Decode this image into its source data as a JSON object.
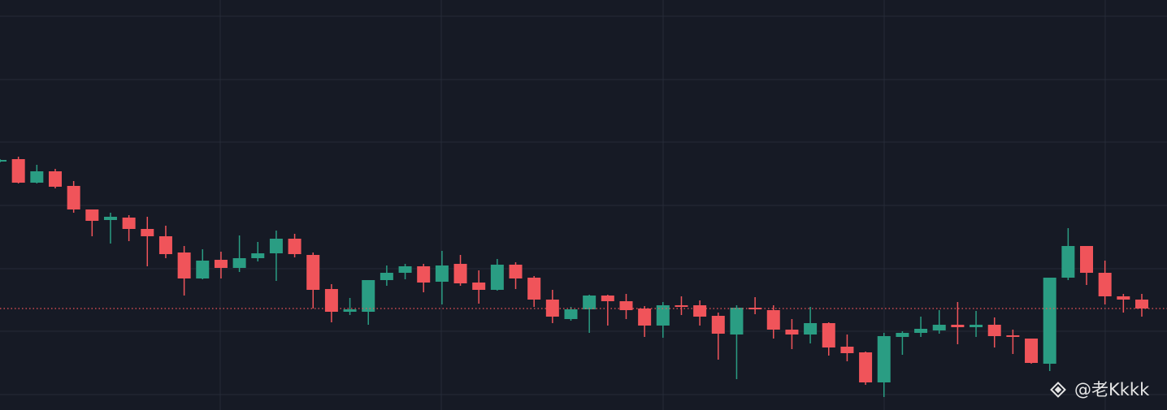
{
  "chart_data": {
    "type": "candlestick",
    "ylim": [
      0,
      505
    ],
    "up_color": "#2a9d83",
    "down_color": "#f0545a",
    "price_line": 125,
    "open": [
      306,
      309,
      280,
      294,
      276,
      247,
      234,
      237,
      223,
      214,
      194,
      162,
      185,
      175,
      187,
      193,
      211,
      191,
      149,
      121,
      121,
      160,
      169,
      177,
      158,
      180,
      157,
      148,
      179,
      163,
      136,
      112,
      124,
      141,
      134,
      125,
      104,
      129,
      129,
      116,
      93,
      126,
      123,
      99,
      93,
      107,
      78,
      71,
      34,
      90,
      95,
      98,
      105,
      102,
      105,
      92,
      88,
      57,
      163,
      202,
      169,
      140,
      136
    ],
    "high": [
      309,
      312,
      302,
      297,
      282,
      247,
      243,
      240,
      238,
      227,
      202,
      198,
      195,
      215,
      207,
      221,
      217,
      194,
      155,
      138,
      160,
      178,
      180,
      180,
      196,
      191,
      172,
      186,
      182,
      165,
      148,
      127,
      142,
      142,
      143,
      128,
      133,
      140,
      135,
      120,
      129,
      139,
      129,
      112,
      127,
      108,
      93,
      72,
      95,
      97,
      115,
      123,
      133,
      122,
      114,
      99,
      88,
      163,
      224,
      202,
      184,
      143,
      143
    ],
    "low": [
      305,
      279,
      279,
      273,
      243,
      214,
      205,
      208,
      177,
      187,
      141,
      161,
      162,
      170,
      183,
      159,
      188,
      125,
      108,
      117,
      105,
      153,
      161,
      145,
      130,
      153,
      131,
      147,
      149,
      127,
      107,
      110,
      95,
      104,
      112,
      90,
      89,
      117,
      104,
      62,
      38,
      118,
      88,
      75,
      82,
      67,
      60,
      31,
      16,
      68,
      90,
      94,
      81,
      90,
      77,
      69,
      57,
      48,
      160,
      154,
      130,
      120,
      115
    ],
    "close": [
      308,
      280,
      294,
      275,
      247,
      233,
      238,
      223,
      214,
      192,
      162,
      184,
      175,
      187,
      193,
      211,
      192,
      148,
      121,
      124,
      160,
      169,
      177,
      157,
      178,
      156,
      148,
      179,
      162,
      136,
      115,
      124,
      141,
      134,
      123,
      104,
      129,
      127,
      115,
      94,
      126,
      124,
      99,
      93,
      107,
      77,
      70,
      34,
      91,
      95,
      100,
      105,
      102,
      105,
      91,
      90,
      58,
      163,
      202,
      169,
      140,
      136,
      125
    ],
    "watermark": "@老Kkkk"
  }
}
